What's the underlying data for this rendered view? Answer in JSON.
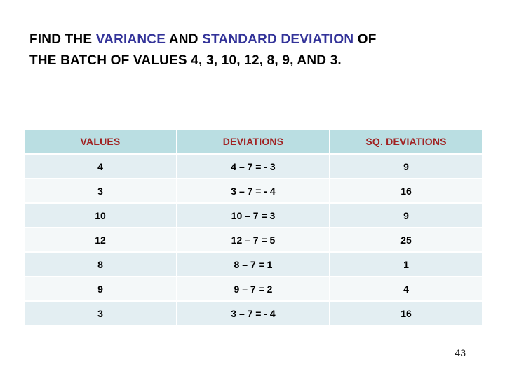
{
  "slide": {
    "title": {
      "lines": [
        {
          "segments": [
            {
              "text": "FIND THE ",
              "accent": false
            },
            {
              "text": "VARIANCE",
              "accent": true
            },
            {
              "text": " AND ",
              "accent": false
            },
            {
              "text": "STANDARD DEVIATION",
              "accent": true
            },
            {
              "text": " OF",
              "accent": false
            }
          ]
        },
        {
          "segments": [
            {
              "text": "THE BATCH OF VALUES 4, 3, 10, 12, 8, 9, AND 3.",
              "accent": false
            }
          ]
        }
      ]
    },
    "table": {
      "headers": [
        "VALUES",
        "DEVIATIONS",
        "SQ. DEVIATIONS"
      ],
      "rows": [
        [
          "4",
          "4 – 7 = - 3",
          "9"
        ],
        [
          "3",
          "3 – 7 = - 4",
          "16"
        ],
        [
          "10",
          "10 – 7 = 3",
          "9"
        ],
        [
          "12",
          "12 – 7 = 5",
          "25"
        ],
        [
          "8",
          "8 – 7 = 1",
          "1"
        ],
        [
          "9",
          "9 – 7 = 2",
          "4"
        ],
        [
          "3",
          "3 – 7 = - 4",
          "16"
        ]
      ]
    },
    "page_number": "43",
    "colors": {
      "title_accent": "#333399",
      "table_header_bg": "#badee2",
      "table_header_text": "#a02222",
      "row_odd_bg": "#e3eef2",
      "row_even_bg": "#f4f8f9",
      "body_text": "#000000"
    }
  }
}
